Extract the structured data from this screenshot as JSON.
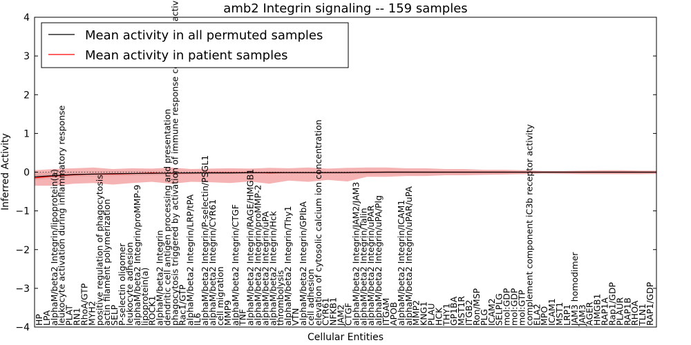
{
  "chart_data": {
    "type": "line",
    "title": "amb2 Integrin signaling -- 159 samples",
    "xlabel": "Cellular Entities",
    "ylabel": "Inferred Activity",
    "ylim": [
      -4,
      4
    ],
    "yticks": [
      -4,
      -3,
      -2,
      -1,
      0,
      1,
      2,
      3,
      4
    ],
    "xlim": [
      0,
      159
    ],
    "legend_position": "top-left",
    "colors": {
      "permuted": "#000000",
      "patient": "#ff0000",
      "patient_band": "#f08080",
      "permuted_band": "#c8c8c8"
    },
    "categories": [
      "HP",
      "LPA",
      "alphaM/beta2 Integrin/lipoprotein(a)",
      "leukocyte activation during inflammatory response",
      "PLAT",
      "RN1",
      "RhoA/GTP",
      "MYH2",
      "positive regulation of phagocytosis",
      "actin filament polymerization",
      "SELP",
      "P-selectin oligomer",
      "leukocyte adhesion",
      "alphaM/beta2 Integrin/proMMP-9",
      "lipoprotein(a)",
      "ROCK1",
      "alphaM/beta2 Integrin",
      "dendritic cell antigen processing and presentation",
      "phagocytosis triggered by activation of immune response cell surface activating receptor",
      "Rac1/GTP",
      "alphaM/beta2 Integrin/LRP/tPA",
      "IL6",
      "alphaM/beta2 Integrin/P-selectin/PSGL1",
      "alphaM/beta2 Integrin/CYR61",
      "cell migration",
      "MMP9",
      "alphaM/beta2 Integrin/CTGF",
      "TNF",
      "alphaM/beta2 Integrin/RAGE/HMGB1",
      "alphaM/beta2 Integrin/proMMP-2",
      "alphaM/beta2 Integrin/uPA",
      "alphaM/beta2 Integrin/Hck",
      "thrombolysis",
      "alphaM/beta2 Integrin/Thy1",
      "VTN",
      "alphaM/beta2 Integrin/GPIbA",
      "cell adhesion",
      "elevation of cytosolic calcium ion concentration",
      "CYR61",
      "NFKB1",
      "JAM2",
      "CTGF",
      "alphaM/beta2 Integrin/JAM2/JAM3",
      "alphaM/beta2 Integrin/Talin",
      "alphaM/beta2 Integrin/uPAR",
      "alphaM/beta2 Integrin/uPA/Plg",
      "ITGAM",
      "APOB",
      "alphaM/beta2 Integrin/ICAM1",
      "alphaM/beta2 Integrin/uPAR/uPA",
      "MMP2",
      "KNG1",
      "PLAU",
      "HCK",
      "THY1",
      "GP1BA",
      "MST1R",
      "ITGB2",
      "Ron/MSP",
      "PLG",
      "ICAM2",
      "SELPLG",
      "mol:GDP",
      "mol:GDP",
      "mol:GTP",
      "complement component iC3b receptor activity",
      "ELA2",
      "MPO",
      "ICAM1",
      "MST1",
      "LRP1",
      "JAM3 homodimer",
      "JAM3",
      "AGER",
      "HMGB1",
      "RAP1A",
      "Rap1/GDP",
      "PLAUR",
      "RAP1B",
      "RHOA",
      "TLN1",
      "RAP1/GDP"
    ],
    "series": [
      {
        "name": "Mean activity in all permuted samples",
        "x": [
          0,
          10,
          20,
          30,
          40,
          50,
          60,
          70,
          80,
          90,
          100,
          110,
          120,
          130,
          140,
          150,
          159
        ],
        "y": [
          -0.12,
          -0.06,
          -0.04,
          -0.03,
          -0.02,
          -0.02,
          -0.01,
          -0.01,
          -0.01,
          0.0,
          0.0,
          0.0,
          0.0,
          0.0,
          0.0,
          0.0,
          0.0
        ],
        "band_upper": [
          0.0,
          0.02,
          0.03,
          0.03,
          0.03,
          0.02,
          0.02,
          0.02,
          0.03,
          0.03,
          0.02,
          0.02,
          0.03,
          0.02,
          0.02,
          0.03,
          0.02
        ],
        "band_lower": [
          -0.2,
          -0.12,
          -0.1,
          -0.08,
          -0.06,
          -0.05,
          -0.05,
          -0.05,
          -0.05,
          -0.05,
          -0.05,
          -0.05,
          -0.05,
          -0.05,
          -0.05,
          -0.05,
          -0.05
        ]
      },
      {
        "name": "Mean activity in patient samples",
        "x": [
          0,
          5,
          10,
          15,
          20,
          25,
          30,
          35,
          40,
          45,
          50,
          55,
          60,
          65,
          70,
          75,
          80,
          85,
          90,
          95,
          100,
          105,
          110,
          115,
          120,
          125,
          130,
          135,
          140,
          145,
          150,
          155,
          159
        ],
        "y": [
          -0.15,
          -0.1,
          -0.07,
          -0.05,
          -0.05,
          -0.04,
          -0.02,
          -0.03,
          -0.02,
          -0.01,
          -0.01,
          -0.01,
          -0.02,
          -0.01,
          -0.01,
          -0.01,
          -0.01,
          0.0,
          0.0,
          0.0,
          0.0,
          0.0,
          0.0,
          0.0,
          0.0,
          0.0,
          0.0,
          0.0,
          0.0,
          0.0,
          0.0,
          0.0,
          0.0
        ],
        "band_upper": [
          0.05,
          0.08,
          0.1,
          0.12,
          0.08,
          0.1,
          0.09,
          0.12,
          0.08,
          0.09,
          0.1,
          0.09,
          0.11,
          0.1,
          0.12,
          0.09,
          0.11,
          0.12,
          0.12,
          0.1,
          0.1,
          0.08,
          0.08,
          0.06,
          0.06,
          0.05,
          0.03,
          0.03,
          0.04,
          0.05,
          0.05,
          0.04,
          0.04
        ],
        "band_lower": [
          -0.35,
          -0.35,
          -0.3,
          -0.28,
          -0.32,
          -0.28,
          -0.25,
          -0.3,
          -0.25,
          -0.26,
          -0.28,
          -0.24,
          -0.3,
          -0.22,
          -0.25,
          -0.2,
          -0.24,
          -0.12,
          -0.12,
          -0.1,
          -0.1,
          -0.08,
          -0.08,
          -0.07,
          -0.06,
          -0.05,
          -0.03,
          -0.04,
          -0.05,
          -0.05,
          -0.05,
          -0.05,
          -0.04
        ]
      }
    ]
  }
}
